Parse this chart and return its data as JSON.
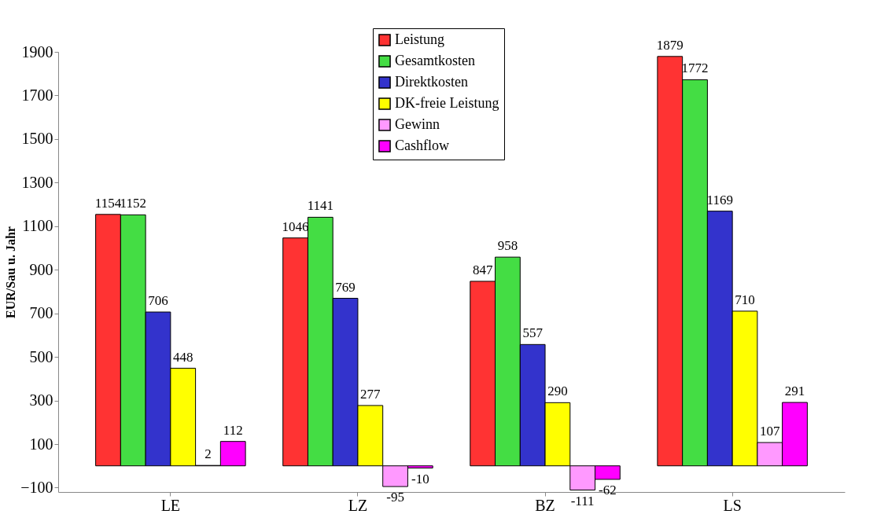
{
  "chart_data": {
    "type": "bar",
    "ylabel": "EUR/Sau u. Jahr",
    "categories": [
      "LE",
      "LZ",
      "BZ",
      "LS"
    ],
    "series": [
      {
        "name": "Leistung",
        "color": "#ff3333",
        "values": [
          1154,
          1046,
          847,
          1879
        ]
      },
      {
        "name": "Gesamtkosten",
        "color": "#44dd44",
        "values": [
          1152,
          1141,
          958,
          1772
        ]
      },
      {
        "name": "Direktkosten",
        "color": "#3333cc",
        "values": [
          706,
          769,
          557,
          1169
        ]
      },
      {
        "name": "DK-freie Leistung",
        "color": "#ffff00",
        "values": [
          448,
          277,
          290,
          710
        ]
      },
      {
        "name": "Gewinn",
        "color": "#ff99ff",
        "values": [
          2,
          -95,
          -111,
          107
        ]
      },
      {
        "name": "Cashflow",
        "color": "#ff00ff",
        "values": [
          112,
          -10,
          -62,
          291
        ]
      }
    ],
    "ylim": [
      -120,
      1900
    ],
    "yticks": [
      -100,
      100,
      300,
      500,
      700,
      900,
      1100,
      1300,
      1500,
      1700,
      1900
    ],
    "data_labels": true,
    "legend": "top",
    "grid": false
  }
}
